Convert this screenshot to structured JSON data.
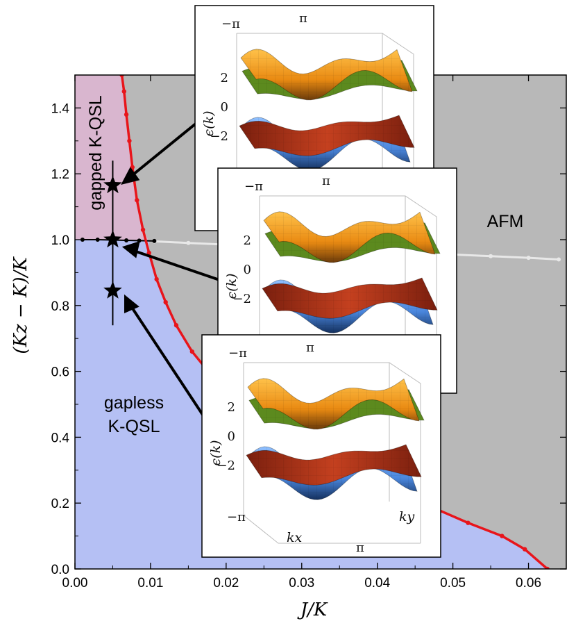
{
  "chart_data": {
    "type": "phase-diagram",
    "xlabel": "J/K",
    "ylabel": "(Kz − K)/K",
    "xlim": [
      0,
      0.065
    ],
    "ylim": [
      0,
      1.5
    ],
    "xticks": [
      "0.00",
      "0.01",
      "0.02",
      "0.03",
      "0.04",
      "0.05",
      "0.06"
    ],
    "yticks": [
      "0.0",
      "0.2",
      "0.4",
      "0.6",
      "0.8",
      "1.0",
      "1.2",
      "1.4"
    ],
    "regions": [
      {
        "label": "gapped K-QSL",
        "color": "#d9b6cf"
      },
      {
        "label": "gapless\nK-QSL",
        "color": "#b5c0f4"
      },
      {
        "label": "AFM",
        "color": "#b8b8b8"
      }
    ],
    "red_boundary": {
      "color": "#e8151b",
      "points": [
        [
          0.0105,
          0.0
        ],
        [
          0.0115,
          0.0
        ],
        [
          0.0125,
          0.0
        ],
        [
          0.0062,
          1.5
        ],
        [
          0.0065,
          1.45
        ],
        [
          0.0068,
          1.38
        ],
        [
          0.0072,
          1.3
        ],
        [
          0.0076,
          1.22
        ],
        [
          0.0082,
          1.12
        ],
        [
          0.009,
          1.03
        ],
        [
          0.0098,
          0.96
        ],
        [
          0.0108,
          0.88
        ],
        [
          0.012,
          0.81
        ],
        [
          0.0134,
          0.74
        ],
        [
          0.0155,
          0.66
        ],
        [
          0.018,
          0.59
        ],
        [
          0.021,
          0.52
        ],
        [
          0.0245,
          0.46
        ],
        [
          0.028,
          0.41
        ],
        [
          0.032,
          0.36
        ],
        [
          0.036,
          0.31
        ],
        [
          0.04,
          0.265
        ],
        [
          0.044,
          0.22
        ],
        [
          0.048,
          0.18
        ],
        [
          0.052,
          0.14
        ],
        [
          0.0565,
          0.1
        ],
        [
          0.0595,
          0.06
        ],
        [
          0.0625,
          0.0
        ]
      ]
    },
    "black_boundary": {
      "color": "#000000",
      "points": [
        [
          0.001,
          1.0
        ],
        [
          0.003,
          1.0
        ],
        [
          0.005,
          0.999
        ],
        [
          0.0068,
          0.998
        ],
        [
          0.0085,
          0.997
        ],
        [
          0.0105,
          0.996
        ]
      ]
    },
    "gray_boundary": {
      "color": "#e8e8e8",
      "points": [
        [
          0.0105,
          0.995
        ],
        [
          0.015,
          0.99
        ],
        [
          0.02,
          0.985
        ],
        [
          0.025,
          0.98
        ],
        [
          0.03,
          0.975
        ],
        [
          0.035,
          0.97
        ],
        [
          0.04,
          0.965
        ],
        [
          0.045,
          0.96
        ],
        [
          0.05,
          0.955
        ],
        [
          0.055,
          0.95
        ],
        [
          0.06,
          0.945
        ],
        [
          0.064,
          0.94
        ]
      ]
    },
    "stars": [
      [
        0.005,
        1.165
      ],
      [
        0.005,
        1.0
      ],
      [
        0.005,
        0.845
      ]
    ],
    "vertical_line": {
      "x": 0.005,
      "y": [
        0.74,
        1.24
      ]
    },
    "insets": [
      {
        "theta_top": [
          "−π",
          "π"
        ],
        "eps_ticks": [
          "2",
          "0",
          "−2"
        ],
        "eps_label": "ϵ(k)"
      },
      {
        "theta_top": [
          "−π",
          "π"
        ],
        "eps_ticks": [
          "2",
          "0",
          "−2"
        ],
        "eps_label": "ϵ(k)"
      },
      {
        "theta_top": [
          "−π",
          "π"
        ],
        "eps_ticks": [
          "2",
          "0",
          "−2"
        ],
        "eps_label": "ϵ(k)",
        "bottom_labels": [
          "−π",
          "π"
        ],
        "kx_label": "kx",
        "ky_label": "ky"
      }
    ]
  }
}
